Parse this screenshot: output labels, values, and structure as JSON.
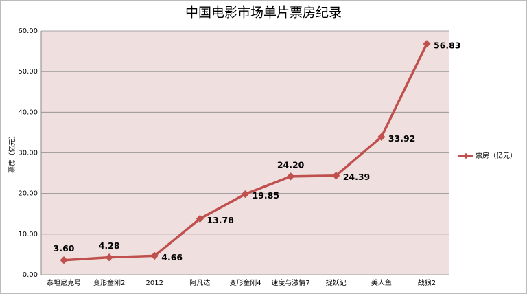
{
  "chart_data": {
    "type": "line",
    "title": "中国电影市场单片票房纪录",
    "y_label": "票房（亿元）",
    "categories": [
      "泰坦尼克号",
      "变形金刚2",
      "2012",
      "阿凡达",
      "变形金刚4",
      "速度与激情7",
      "捉妖记",
      "美人鱼",
      "战狼2"
    ],
    "series": [
      {
        "name": "票房（亿元）",
        "color": "#c0504d",
        "values": [
          3.6,
          4.28,
          4.66,
          13.78,
          19.85,
          24.2,
          24.39,
          33.92,
          56.83
        ],
        "value_labels": [
          "3.60",
          "4.28",
          "4.66",
          "13.78",
          "19.85",
          "24.20",
          "24.39",
          "33.92",
          "56.83"
        ]
      }
    ],
    "ylim": [
      0,
      60
    ],
    "yticks": [
      {
        "value": 0,
        "label": "0.00"
      },
      {
        "value": 10,
        "label": "10.00"
      },
      {
        "value": 20,
        "label": "20.00"
      },
      {
        "value": 30,
        "label": "30.00"
      },
      {
        "value": 40,
        "label": "40.00"
      },
      {
        "value": 50,
        "label": "50.00"
      },
      {
        "value": 60,
        "label": "60.00"
      }
    ],
    "grid": true,
    "legend": "right"
  }
}
